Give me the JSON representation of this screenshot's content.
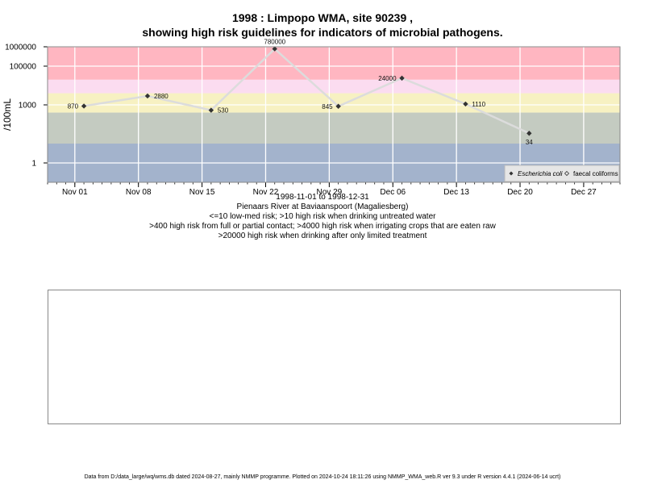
{
  "header": {
    "title_line1": "1998 : Limpopo WMA, site 90239 ,",
    "title_line2": "showing high risk guidelines for indicators of microbial pathogens."
  },
  "chart_data": {
    "type": "scatter",
    "ylabel": "/100mL",
    "y_scale": "log10",
    "ylim": [
      0.1,
      1000000
    ],
    "yticks": [
      1,
      1000,
      100000,
      1000000
    ],
    "ytick_labels": [
      "1",
      "1000",
      "100000",
      "1000000"
    ],
    "x_range": [
      "1998-10-29",
      "1998-12-31"
    ],
    "xticks": [
      "1998-11-01",
      "1998-11-08",
      "1998-11-15",
      "1998-11-22",
      "1998-11-29",
      "1998-12-06",
      "1998-12-13",
      "1998-12-20",
      "1998-12-27"
    ],
    "xtick_labels": [
      "Nov 01",
      "Nov 08",
      "Nov 15",
      "Nov 22",
      "Nov 29",
      "Dec 06",
      "Dec 13",
      "Dec 20",
      "Dec 27"
    ],
    "grid": true,
    "risk_bands": [
      {
        "from": 0.1,
        "to": 10,
        "color": "#a3b3cc"
      },
      {
        "from": 10,
        "to": 400,
        "color": "#c4cbc1"
      },
      {
        "from": 400,
        "to": 4000,
        "color": "#f7f1c2"
      },
      {
        "from": 4000,
        "to": 20000,
        "color": "#fbdcf0"
      },
      {
        "from": 20000,
        "to": 2000000,
        "color": "#ffb6c1"
      }
    ],
    "series": [
      {
        "name": "Escherichia coli",
        "marker": "diamond",
        "color": "#333333",
        "line_color": "#dcdcdc",
        "points": [
          {
            "x": "1998-11-02",
            "y": 870,
            "label": "870"
          },
          {
            "x": "1998-11-09",
            "y": 2880,
            "label": "2880"
          },
          {
            "x": "1998-11-16",
            "y": 530,
            "label": "530"
          },
          {
            "x": "1998-11-23",
            "y": 780000,
            "label": "780000"
          },
          {
            "x": "1998-11-30",
            "y": 845,
            "label": "845"
          },
          {
            "x": "1998-12-07",
            "y": 24000,
            "label": "24000"
          },
          {
            "x": "1998-12-14",
            "y": 1110,
            "label": "1110"
          },
          {
            "x": "1998-12-21",
            "y": 34,
            "label": "34"
          }
        ]
      },
      {
        "name": "faecal coliforms",
        "marker": "open-diamond",
        "color": "#333333",
        "points": []
      }
    ],
    "legend_position": "bottom-right"
  },
  "subtitle": {
    "date_range": "1998-11-01 to 1998-12-31",
    "site_name": "Pienaars River at Baviaanspoort (Magaliesberg)",
    "guideline1": "<=10 low-med risk; >10 high risk when drinking untreated water",
    "guideline2": ">400 high risk from full or partial contact; >4000 high risk when irrigating crops that are eaten raw",
    "guideline3": ">20000 high risk when drinking after only limited treatment"
  },
  "footer": {
    "text": "Data from D:/data_large/wq/wms.db dated 2024-08-27, mainly NMMP programme. Plotted on 2024-10-24 18:11:26 using NMMP_WMA_web.R ver 9.3 under R version 4.4.1 (2024-06-14 ucrt)"
  }
}
